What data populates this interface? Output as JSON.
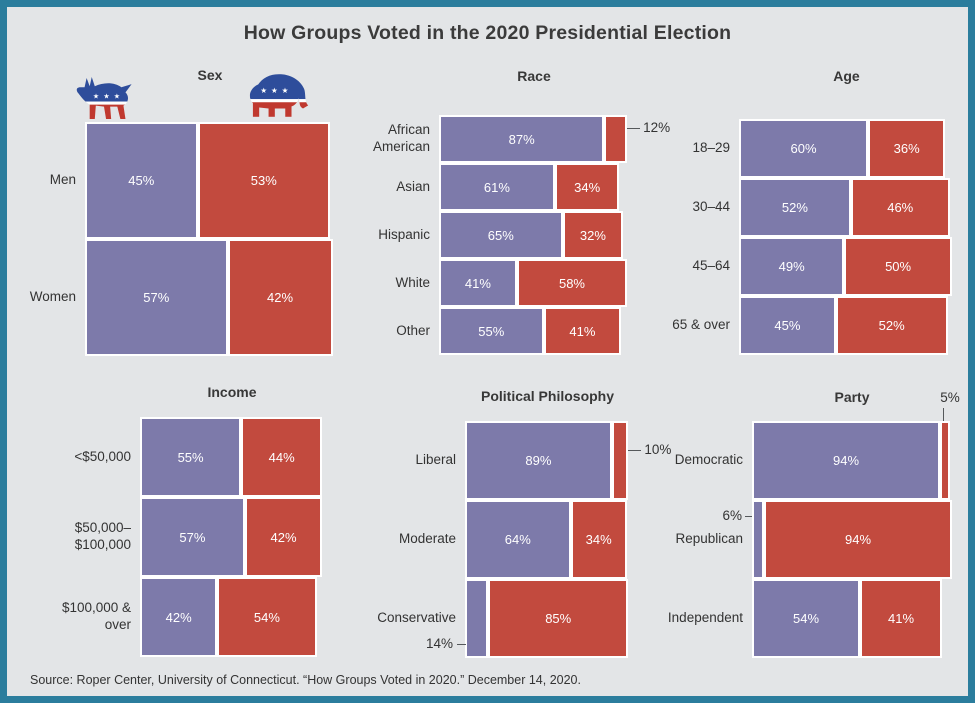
{
  "title": "How Groups Voted in the 2020 Presidential Election",
  "source": "Source: Roper Center, University of Connecticut. “How Groups Voted in 2020.” December 14, 2020.",
  "colors": {
    "democratic_bar": "#7d7aaa",
    "republican_bar": "#c24a3e",
    "background": "#e3e5e7",
    "border": "#2b7d9d"
  },
  "icons": {
    "democratic": "donkey-icon",
    "republican": "elephant-icon"
  },
  "chart_data": [
    {
      "id": "sex",
      "type": "bar",
      "orientation": "horizontal",
      "title": "Sex",
      "series": [
        "Democratic",
        "Republican"
      ],
      "rows": [
        {
          "label": "Men",
          "democratic": 45,
          "republican": 53
        },
        {
          "label": "Women",
          "democratic": 57,
          "republican": 42
        }
      ]
    },
    {
      "id": "race",
      "type": "bar",
      "orientation": "horizontal",
      "title": "Race",
      "series": [
        "Democratic",
        "Republican"
      ],
      "rows": [
        {
          "label": "African\nAmerican",
          "democratic": 87,
          "republican": 12,
          "callout": {
            "republican": "right"
          }
        },
        {
          "label": "Asian",
          "democratic": 61,
          "republican": 34
        },
        {
          "label": "Hispanic",
          "democratic": 65,
          "republican": 32
        },
        {
          "label": "White",
          "democratic": 41,
          "republican": 58
        },
        {
          "label": "Other",
          "democratic": 55,
          "republican": 41
        }
      ]
    },
    {
      "id": "age",
      "type": "bar",
      "orientation": "horizontal",
      "title": "Age",
      "series": [
        "Democratic",
        "Republican"
      ],
      "rows": [
        {
          "label": "18–29",
          "democratic": 60,
          "republican": 36
        },
        {
          "label": "30–44",
          "democratic": 52,
          "republican": 46
        },
        {
          "label": "45–64",
          "democratic": 49,
          "republican": 50
        },
        {
          "label": "65 & over",
          "democratic": 45,
          "republican": 52
        }
      ]
    },
    {
      "id": "income",
      "type": "bar",
      "orientation": "horizontal",
      "title": "Income",
      "series": [
        "Democratic",
        "Republican"
      ],
      "rows": [
        {
          "label": "<$50,000",
          "democratic": 55,
          "republican": 44
        },
        {
          "label": "$50,000–\n$100,000",
          "democratic": 57,
          "republican": 42
        },
        {
          "label": "$100,000 &\nover",
          "democratic": 42,
          "republican": 54
        }
      ]
    },
    {
      "id": "philosophy",
      "type": "bar",
      "orientation": "horizontal",
      "title": "Political Philosophy",
      "series": [
        "Democratic",
        "Republican"
      ],
      "rows": [
        {
          "label": "Liberal",
          "democratic": 89,
          "republican": 10,
          "callout": {
            "republican": "right"
          }
        },
        {
          "label": "Moderate",
          "democratic": 64,
          "republican": 34
        },
        {
          "label": "Conservative",
          "democratic": 14,
          "republican": 85,
          "callout": {
            "democratic": "below-left"
          }
        }
      ]
    },
    {
      "id": "party",
      "type": "bar",
      "orientation": "horizontal",
      "title": "Party",
      "series": [
        "Democratic",
        "Republican"
      ],
      "rows": [
        {
          "label": "Democratic",
          "democratic": 94,
          "republican": 5,
          "callout": {
            "republican": "top-right"
          }
        },
        {
          "label": "Republican",
          "democratic": 6,
          "republican": 94,
          "callout": {
            "democratic": "left"
          }
        },
        {
          "label": "Independent",
          "democratic": 54,
          "republican": 41
        }
      ]
    }
  ]
}
